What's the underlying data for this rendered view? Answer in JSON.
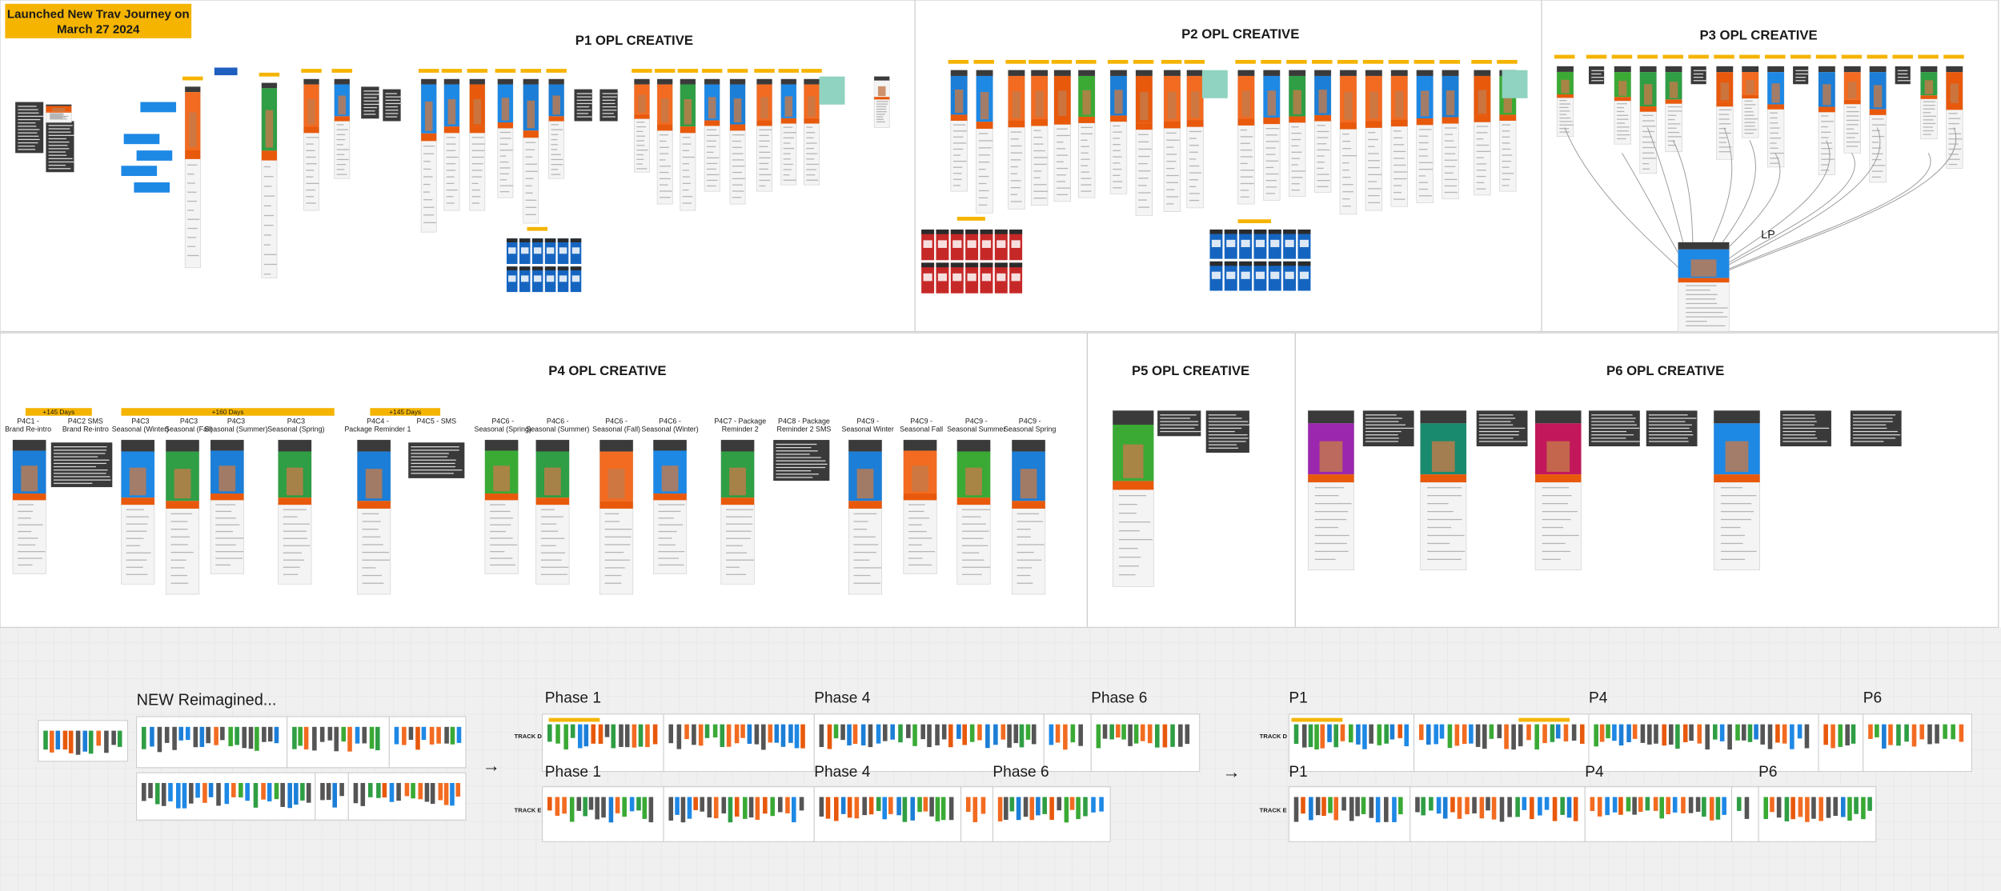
{
  "banner": [
    "Launched New Trav Journey on",
    "March 27 2024"
  ],
  "frames": {
    "p1": "P1 OPL CREATIVE",
    "p2": "P2 OPL CREATIVE",
    "p3": "P3 OPL CREATIVE",
    "p4": "P4 OPL CREATIVE",
    "p5": "P5 OPL CREATIVE",
    "p6": "P6 OPL CREATIVE"
  },
  "lp": "LP",
  "p4_badges": [
    "+145 Days",
    "+160 Days",
    "+145 Days"
  ],
  "p4_labels": [
    [
      "P4C1 -",
      "Brand Re-intro"
    ],
    [
      "P4C2 SMS",
      "Brand Re-intro"
    ],
    [
      "P4C3",
      "Seasonal (Winter)"
    ],
    [
      "P4C3",
      "Seasonal (Fall)"
    ],
    [
      "P4C3",
      "Seasonal (Summer)"
    ],
    [
      "P4C3",
      "Seasonal (Spring)"
    ],
    [
      "P4C4 -",
      "Package Reminder 1"
    ],
    [
      "P4C5 - SMS"
    ],
    [
      "P4C6 -",
      "Seasonal (Spring)"
    ],
    [
      "P4C6 -",
      "Seasonal (Summer)"
    ],
    [
      "P4C6 -",
      "Seasonal (Fall)"
    ],
    [
      "P4C6 -",
      "Seasonal (Winter)"
    ],
    [
      "P4C7 - Package",
      "Reminder 2"
    ],
    [
      "P4C8 - Package",
      "Reminder 2 SMS"
    ],
    [
      "P4C9 -",
      "Seasonal Winter"
    ],
    [
      "P4C9 -",
      "Seasonal Fall"
    ],
    [
      "P4C9 -",
      "Seasonal Summer"
    ],
    [
      "P4C9 -",
      "Seasonal Spring"
    ]
  ],
  "bottom": {
    "title": "NEW Reimagined...",
    "left_d": {
      "track": "TRACK D",
      "phases": [
        "Phase 1",
        "Phase 4",
        "Phase 6"
      ]
    },
    "left_e": {
      "track": "TRACK E",
      "phases": [
        "Phase 1",
        "Phase 4",
        "Phase 6"
      ]
    },
    "right_d": {
      "track": "TRACK D",
      "phases": [
        "P1",
        "P4",
        "P6"
      ]
    },
    "right_e": {
      "track": "TRACK E",
      "phases": [
        "P1",
        "P4",
        "P6"
      ]
    },
    "arrows": [
      "→",
      "→"
    ]
  }
}
